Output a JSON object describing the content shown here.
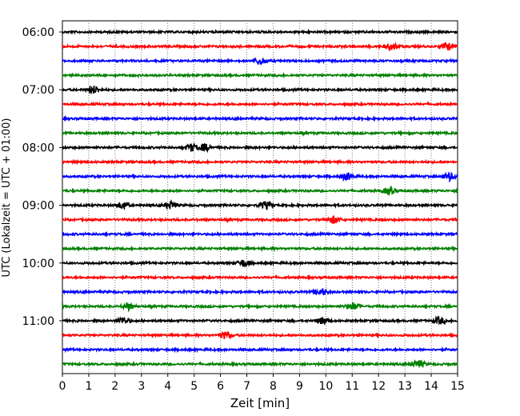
{
  "chart_data": {
    "type": "line",
    "title": "",
    "xlabel": "Zeit  [min]",
    "ylabel": "UTC (Lokalzeit = UTC + 01:00)",
    "xlim": [
      0,
      15
    ],
    "x_ticks": [
      "0",
      "1",
      "2",
      "3",
      "4",
      "5",
      "6",
      "7",
      "8",
      "9",
      "10",
      "11",
      "12",
      "13",
      "14",
      "15"
    ],
    "y_ticks": [
      "06:00",
      "07:00",
      "08:00",
      "09:00",
      "10:00",
      "11:00"
    ],
    "grid": "vertical dotted lines at each minute",
    "trace_interval_min": 15,
    "trace_colors": [
      "#000000",
      "#ff0000",
      "#0000ff",
      "#008000"
    ],
    "series": [
      {
        "start": "06:00",
        "color": "#000000",
        "bursts": []
      },
      {
        "start": "06:15",
        "color": "#ff0000",
        "bursts": [
          12.5,
          14.6
        ]
      },
      {
        "start": "06:30",
        "color": "#0000ff",
        "bursts": [
          7.5
        ]
      },
      {
        "start": "06:45",
        "color": "#008000",
        "bursts": []
      },
      {
        "start": "07:00",
        "color": "#000000",
        "bursts": [
          1.2
        ]
      },
      {
        "start": "07:15",
        "color": "#ff0000",
        "bursts": []
      },
      {
        "start": "07:30",
        "color": "#0000ff",
        "bursts": []
      },
      {
        "start": "07:45",
        "color": "#008000",
        "bursts": []
      },
      {
        "start": "08:00",
        "color": "#000000",
        "bursts": [
          4.9,
          5.4
        ]
      },
      {
        "start": "08:15",
        "color": "#ff0000",
        "bursts": []
      },
      {
        "start": "08:30",
        "color": "#0000ff",
        "bursts": [
          10.8,
          14.7
        ]
      },
      {
        "start": "08:45",
        "color": "#008000",
        "bursts": [
          12.4
        ]
      },
      {
        "start": "09:00",
        "color": "#000000",
        "bursts": [
          2.3,
          4.1,
          7.7
        ]
      },
      {
        "start": "09:15",
        "color": "#ff0000",
        "bursts": [
          10.3
        ]
      },
      {
        "start": "09:30",
        "color": "#0000ff",
        "bursts": []
      },
      {
        "start": "09:45",
        "color": "#008000",
        "bursts": []
      },
      {
        "start": "10:00",
        "color": "#000000",
        "bursts": [
          6.9
        ]
      },
      {
        "start": "10:15",
        "color": "#ff0000",
        "bursts": []
      },
      {
        "start": "10:30",
        "color": "#0000ff",
        "bursts": [
          9.8
        ]
      },
      {
        "start": "10:45",
        "color": "#008000",
        "bursts": [
          2.5,
          11.0
        ]
      },
      {
        "start": "11:00",
        "color": "#000000",
        "bursts": [
          2.3,
          9.9,
          14.3
        ]
      },
      {
        "start": "11:15",
        "color": "#ff0000",
        "bursts": [
          6.2
        ]
      },
      {
        "start": "11:30",
        "color": "#0000ff",
        "bursts": []
      },
      {
        "start": "11:45",
        "color": "#008000",
        "bursts": [
          13.5
        ]
      }
    ]
  }
}
